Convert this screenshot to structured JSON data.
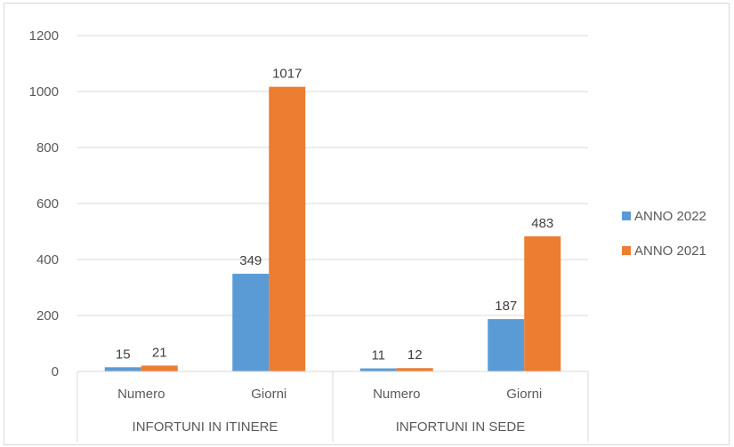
{
  "chart_data": {
    "type": "bar",
    "categories": [
      {
        "group": "INFORTUNI IN ITINERE",
        "label": "Numero"
      },
      {
        "group": "INFORTUNI IN ITINERE",
        "label": "Giorni"
      },
      {
        "group": "INFORTUNI IN SEDE",
        "label": "Numero"
      },
      {
        "group": "INFORTUNI IN SEDE",
        "label": "Giorni"
      }
    ],
    "groups": [
      "INFORTUNI IN ITINERE",
      "INFORTUNI IN SEDE"
    ],
    "series": [
      {
        "name": "ANNO 2022",
        "color": "#5b9bd5",
        "values": [
          15,
          349,
          11,
          187
        ]
      },
      {
        "name": "ANNO 2021",
        "color": "#ed7d31",
        "values": [
          21,
          1017,
          12,
          483
        ]
      }
    ],
    "ylim": [
      0,
      1200
    ],
    "yticks": [
      0,
      200,
      400,
      600,
      800,
      1000,
      1200
    ],
    "grid": true,
    "legend_position": "right",
    "title": "",
    "xlabel": "",
    "ylabel": ""
  }
}
